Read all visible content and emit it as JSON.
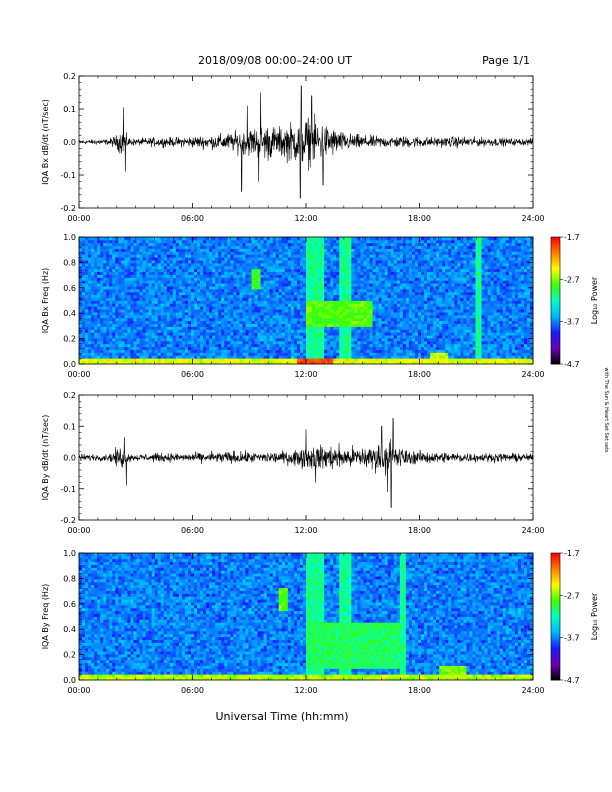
{
  "header": {
    "title": "2018/09/08  00:00–24:00 UT",
    "page": "Page 1/1"
  },
  "footer": {
    "xlabel": "Universal Time (hh:mm)",
    "side_note": "with The Sun & Heart Set Set sets"
  },
  "colors": {
    "background": "#ffffff",
    "axes": "#000000",
    "trace": "#000000"
  },
  "colorbar": {
    "label": "Log₁₀ Power",
    "ticks": [
      "-1.7",
      "-2.7",
      "-3.7",
      "-4.7"
    ],
    "tick_values": [
      -1.7,
      -2.7,
      -3.7,
      -4.7
    ],
    "range": [
      -4.7,
      -1.7
    ],
    "stops": [
      "#000000",
      "#6a00b0",
      "#1a1aff",
      "#00b4ff",
      "#00ffc8",
      "#3cff00",
      "#ffff00",
      "#ff8000",
      "#ff0000"
    ]
  },
  "chart_data": [
    {
      "type": "line",
      "ylabel": "IQA Bx dB/dt (nT/sec)",
      "ylim": [
        -0.2,
        0.2
      ],
      "yticks": [
        -0.2,
        -0.1,
        0.0,
        0.1,
        0.2
      ],
      "ytick_labels": [
        "-0.2",
        "-0.1",
        "0.0",
        "0.1",
        "0.2"
      ],
      "xlim": [
        0,
        24
      ],
      "xticks": [
        0,
        6,
        12,
        18,
        24
      ],
      "xtick_labels": [
        "00:00",
        "06:00",
        "12:00",
        "18:00",
        "24:00"
      ],
      "envelope": {
        "x": [
          0,
          1.5,
          2.0,
          2.3,
          2.6,
          3,
          4,
          5,
          6,
          7,
          8,
          9,
          9.5,
          10,
          10.5,
          11,
          11.5,
          12,
          12.5,
          13,
          13.5,
          14,
          15,
          16,
          17,
          18,
          19,
          20,
          21,
          22,
          23,
          24
        ],
        "amp": [
          0.01,
          0.012,
          0.03,
          0.06,
          0.02,
          0.015,
          0.02,
          0.02,
          0.025,
          0.03,
          0.04,
          0.06,
          0.07,
          0.08,
          0.06,
          0.08,
          0.09,
          0.11,
          0.1,
          0.08,
          0.06,
          0.04,
          0.03,
          0.025,
          0.025,
          0.025,
          0.02,
          0.025,
          0.02,
          0.018,
          0.015,
          0.015
        ]
      },
      "spikes": [
        {
          "x": 2.35,
          "y": 0.105
        },
        {
          "x": 2.45,
          "y": -0.09
        },
        {
          "x": 8.6,
          "y": -0.15
        },
        {
          "x": 8.9,
          "y": 0.11
        },
        {
          "x": 9.6,
          "y": 0.15
        },
        {
          "x": 9.5,
          "y": -0.12
        },
        {
          "x": 11.75,
          "y": 0.17
        },
        {
          "x": 11.7,
          "y": -0.17
        },
        {
          "x": 12.3,
          "y": 0.14
        },
        {
          "x": 12.9,
          "y": -0.13
        }
      ]
    },
    {
      "type": "heatmap",
      "ylabel": "IQA Bx Freq (Hz)",
      "ylim": [
        0.0,
        1.0
      ],
      "yticks": [
        0.0,
        0.2,
        0.4,
        0.6,
        0.8,
        1.0
      ],
      "ytick_labels": [
        "0.0",
        "0.2",
        "0.4",
        "0.6",
        "0.8",
        "1.0"
      ],
      "xlim": [
        0,
        24
      ],
      "xticks": [
        0,
        6,
        12,
        18,
        24
      ],
      "xtick_labels": [
        "00:00",
        "06:00",
        "12:00",
        "18:00",
        "24:00"
      ],
      "background_level": -3.7,
      "features": [
        {
          "x0": 0,
          "x1": 24,
          "f0": 0.0,
          "f1": 0.04,
          "level": -2.5
        },
        {
          "x0": 11.5,
          "x1": 13.5,
          "f0": 0.0,
          "f1": 0.04,
          "level": -1.9
        },
        {
          "x0": 9.2,
          "x1": 9.6,
          "f0": 0.6,
          "f1": 0.75,
          "level": -2.9
        },
        {
          "x0": 12.0,
          "x1": 15.5,
          "f0": 0.3,
          "f1": 0.5,
          "level": -2.8
        },
        {
          "x0": 12.0,
          "x1": 13.0,
          "f0": 0.0,
          "f1": 1.0,
          "level": -3.1
        },
        {
          "x0": 13.8,
          "x1": 14.4,
          "f0": 0.0,
          "f1": 1.0,
          "level": -3.1
        },
        {
          "x0": 21.0,
          "x1": 21.3,
          "f0": 0.0,
          "f1": 1.0,
          "level": -3.1
        },
        {
          "x0": 18.5,
          "x1": 19.5,
          "f0": 0.0,
          "f1": 0.1,
          "level": -2.6
        }
      ]
    },
    {
      "type": "line",
      "ylabel": "IQA By dB/dt (nT/sec)",
      "ylim": [
        -0.2,
        0.2
      ],
      "yticks": [
        -0.2,
        -0.1,
        0.0,
        0.1,
        0.2
      ],
      "ytick_labels": [
        "-0.2",
        "-0.1",
        "0.0",
        "0.1",
        "0.2"
      ],
      "xlim": [
        0,
        24
      ],
      "xticks": [
        0,
        6,
        12,
        18,
        24
      ],
      "xtick_labels": [
        "00:00",
        "06:00",
        "12:00",
        "18:00",
        "24:00"
      ],
      "envelope": {
        "x": [
          0,
          1.5,
          2.0,
          2.3,
          2.6,
          3,
          4,
          5,
          6,
          7,
          8,
          9,
          10,
          11,
          11.5,
          12,
          13,
          14,
          15,
          16,
          16.5,
          17,
          17.5,
          18,
          19,
          20,
          21,
          22,
          23,
          24
        ],
        "amp": [
          0.015,
          0.015,
          0.04,
          0.05,
          0.02,
          0.015,
          0.02,
          0.02,
          0.02,
          0.025,
          0.03,
          0.025,
          0.025,
          0.03,
          0.04,
          0.05,
          0.06,
          0.05,
          0.05,
          0.07,
          0.08,
          0.05,
          0.03,
          0.03,
          0.025,
          0.025,
          0.02,
          0.02,
          0.02,
          0.015
        ]
      },
      "spikes": [
        {
          "x": 2.4,
          "y": 0.065
        },
        {
          "x": 2.5,
          "y": -0.09
        },
        {
          "x": 12.0,
          "y": 0.09
        },
        {
          "x": 12.5,
          "y": -0.08
        },
        {
          "x": 16.0,
          "y": 0.1
        },
        {
          "x": 16.6,
          "y": 0.125
        },
        {
          "x": 16.5,
          "y": -0.16
        },
        {
          "x": 16.3,
          "y": -0.11
        }
      ]
    },
    {
      "type": "heatmap",
      "ylabel": "IQA By Freq (Hz)",
      "ylim": [
        0.0,
        1.0
      ],
      "yticks": [
        0.0,
        0.2,
        0.4,
        0.6,
        0.8,
        1.0
      ],
      "ytick_labels": [
        "0.0",
        "0.2",
        "0.4",
        "0.6",
        "0.8",
        "1.0"
      ],
      "xlim": [
        0,
        24
      ],
      "xticks": [
        0,
        6,
        12,
        18,
        24
      ],
      "xtick_labels": [
        "00:00",
        "06:00",
        "12:00",
        "18:00",
        "24:00"
      ],
      "background_level": -3.7,
      "features": [
        {
          "x0": 0,
          "x1": 24,
          "f0": 0.0,
          "f1": 0.04,
          "level": -2.6
        },
        {
          "x0": 10.6,
          "x1": 11.0,
          "f0": 0.55,
          "f1": 0.72,
          "level": -2.8
        },
        {
          "x0": 12.0,
          "x1": 17.0,
          "f0": 0.1,
          "f1": 0.45,
          "level": -3.0
        },
        {
          "x0": 12.0,
          "x1": 13.0,
          "f0": 0.0,
          "f1": 1.0,
          "level": -3.1
        },
        {
          "x0": 13.8,
          "x1": 14.4,
          "f0": 0.0,
          "f1": 1.0,
          "level": -3.1
        },
        {
          "x0": 16.9,
          "x1": 17.2,
          "f0": 0.0,
          "f1": 1.0,
          "level": -3.1
        },
        {
          "x0": 19.0,
          "x1": 20.5,
          "f0": 0.0,
          "f1": 0.12,
          "level": -2.7
        }
      ]
    }
  ]
}
